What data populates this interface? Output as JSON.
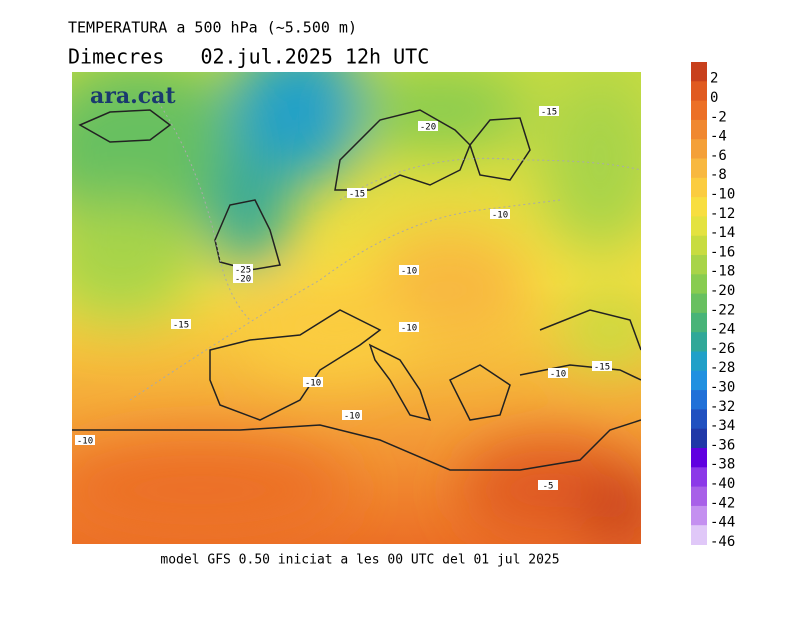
{
  "header": {
    "title": "TEMPERATURA a 500 hPa (~5.500 m)",
    "subtitle": "Dimecres   02.jul.2025 12h UTC"
  },
  "logo": "ara.cat",
  "footer": "model GFS 0.50 iniciat a les 00 UTC del 01 jul 2025",
  "contour_labels": [
    "-20",
    "-15",
    "-15",
    "-10",
    "-25",
    "-20",
    "-10",
    "-15",
    "-10",
    "-10",
    "-10",
    "-15",
    "-10",
    "-10",
    "-5"
  ],
  "legend": {
    "values": [
      2,
      0,
      -2,
      -4,
      -6,
      -8,
      -10,
      -12,
      -14,
      -16,
      -18,
      -20,
      -22,
      -24,
      -26,
      -28,
      -30,
      -32,
      -34,
      -36,
      -38,
      -40,
      -42,
      -44,
      -46
    ],
    "colors": [
      "#c8401c",
      "#e05a20",
      "#ec7026",
      "#f08830",
      "#f4a038",
      "#f8b840",
      "#fbcc40",
      "#f8de40",
      "#e4e240",
      "#c8dc40",
      "#a8d448",
      "#88cc50",
      "#68c060",
      "#48b478",
      "#30a898",
      "#20a0c8",
      "#2090e0",
      "#2070d8",
      "#2050c0",
      "#2038a8",
      "#6000e0",
      "#8c38e8",
      "#a860e8",
      "#c490f0",
      "#e0c8f8"
    ]
  }
}
